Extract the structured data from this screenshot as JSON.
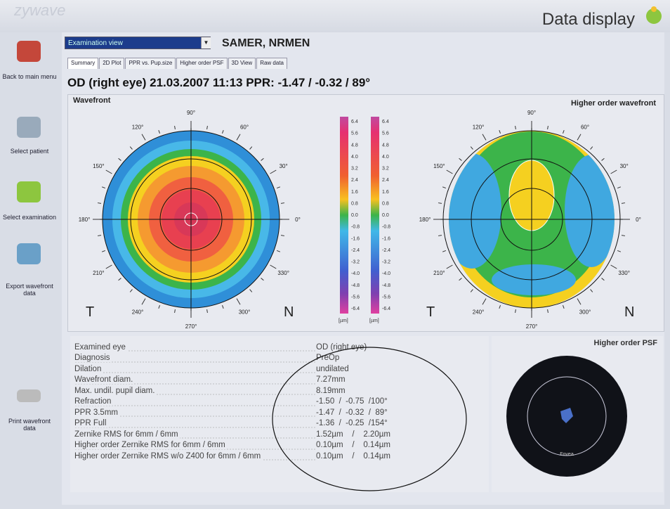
{
  "logo": "zywave",
  "window_title": "Data display",
  "sidebar": [
    "Back to main menu",
    "Select patient",
    "Select examination",
    "Export wavefront data",
    "Print wavefront data"
  ],
  "view_select": "Examination view",
  "patient": "SAMER, NRMEN",
  "tabs": [
    "Summary",
    "2D Plot",
    "PPR vs. Pup.size",
    "Higher order PSF",
    "3D View",
    "Raw data"
  ],
  "exam_header": "OD (right eye)  21.03.2007  11:13  PPR: -1.47 / -0.32 / 89°",
  "maps": {
    "left_title": "Wavefront",
    "right_title": "Higher order wavefront",
    "angles": [
      "90°",
      "60°",
      "30°",
      "0°",
      "330°",
      "300°",
      "270°",
      "240°",
      "210°",
      "180°",
      "150°",
      "120°"
    ],
    "temporal": "T",
    "nasal": "N"
  },
  "scale": {
    "labels": [
      "6.4",
      "5.6",
      "4.8",
      "4.0",
      "3.2",
      "2.4",
      "1.6",
      "0.8",
      "0.0",
      "-0.8",
      "-1.6",
      "-2.4",
      "-3.2",
      "-4.0",
      "-4.8",
      "-5.6",
      "-6.4"
    ],
    "unit": "[µm]"
  },
  "info": [
    [
      "Examined eye",
      "OD (right eye)"
    ],
    [
      "Diagnosis",
      "PreOp"
    ],
    [
      "Dilation",
      "undilated"
    ],
    [
      "Wavefront diam.",
      "7.27mm"
    ],
    [
      "Max. undil. pupil diam.",
      "8.19mm"
    ],
    [
      "Refraction",
      "-1.50  /  -0.75  /100°"
    ],
    [
      "PPR 3.5mm",
      "-1.47  /  -0.32  /  89°"
    ],
    [
      "PPR Full",
      "-1.36  /  -0.25  /154°"
    ],
    [
      "Zernike RMS for 6mm / 6mm",
      "1.52µm    /    2.20µm"
    ],
    [
      "Higher order Zernike RMS for 6mm / 6mm",
      "0.10µm    /    0.14µm"
    ],
    [
      "Higher order Zernike RMS w/o Z400 for 6mm / 6mm",
      "0.10µm    /    0.14µm"
    ]
  ],
  "psf": {
    "title": "Higher order PSF",
    "label": "Fovea"
  }
}
